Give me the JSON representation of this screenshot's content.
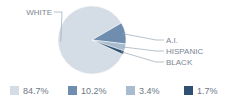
{
  "chart_data": {
    "type": "pie",
    "categories": [
      "WHITE",
      "A.I.",
      "HISPANIC",
      "BLACK"
    ],
    "values": [
      84.7,
      10.2,
      3.4,
      1.7
    ],
    "value_labels": [
      "84.7%",
      "10.2%",
      "3.4%",
      "1.7%"
    ],
    "colors": [
      "#d4dce6",
      "#6f8daf",
      "#a9bbce",
      "#2f5072"
    ],
    "legend": "bottom"
  }
}
